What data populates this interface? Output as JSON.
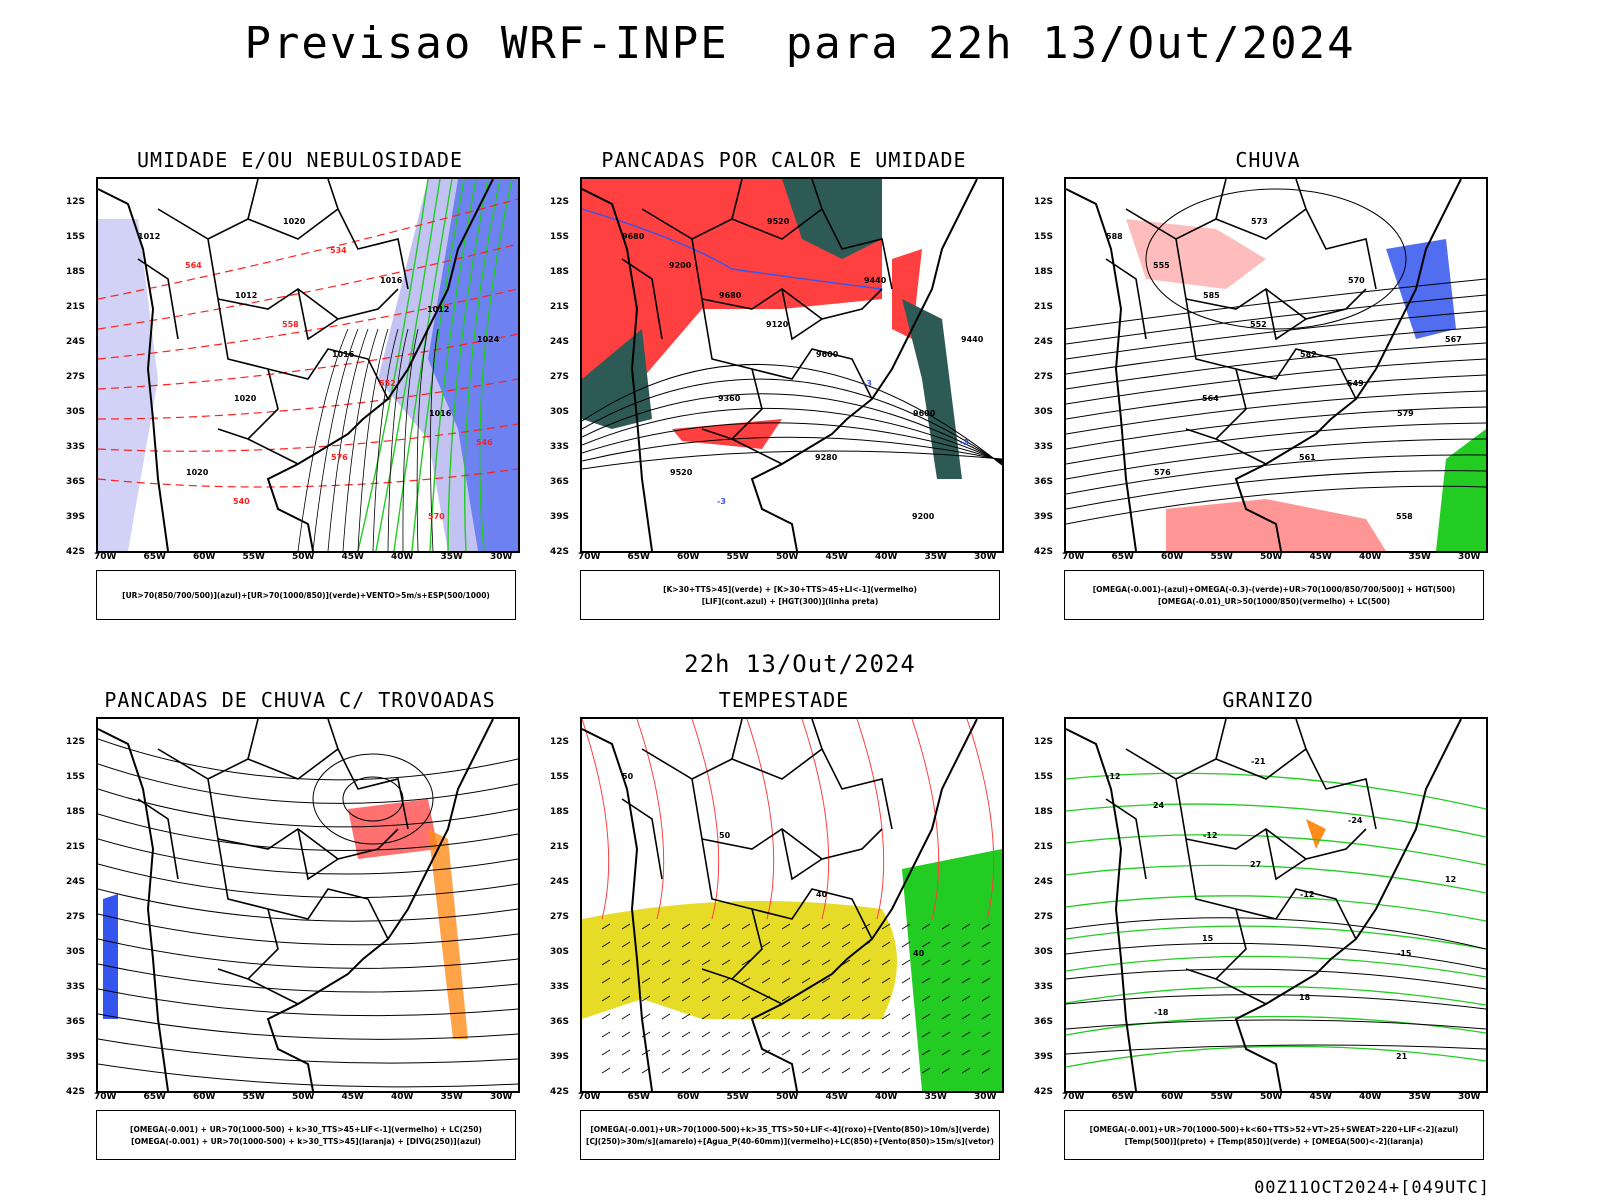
{
  "header": {
    "title": "Previsao WRF-INPE  para 22h 13/Out/2024",
    "subtitle": "22h 13/Out/2024",
    "footer": "00Z11OCT2024+[049UTC]"
  },
  "axes": {
    "lat_labels": [
      "12S",
      "15S",
      "18S",
      "21S",
      "24S",
      "27S",
      "30S",
      "33S",
      "36S",
      "39S",
      "42S"
    ],
    "lon_labels": [
      "70W",
      "65W",
      "60W",
      "55W",
      "50W",
      "45W",
      "40W",
      "35W",
      "30W"
    ]
  },
  "colors": {
    "red": "#ff4040",
    "blue": "#3355ee",
    "green": "#22cc22",
    "darkteal": "#2e5a55",
    "yellow": "#e6dc28",
    "orange": "#ff8c1a",
    "lavender": "#b4b4f0"
  },
  "panels": [
    {
      "title": "UMIDADE E/OU NEBULOSIDADE",
      "legend": [
        "[UR>70(850/700/500)](azul)+[UR>70(1000/850)](verde)+VENTO>5m/s+ESP(500/1000)"
      ],
      "contour_labels": [
        "1012",
        "1012",
        "1016",
        "1016",
        "1020",
        "1020",
        "1016",
        "1024",
        "1020",
        "576",
        "570",
        "564",
        "558",
        "552",
        "546",
        "540",
        "534",
        "1012"
      ]
    },
    {
      "title": "PANCADAS POR CALOR E UMIDADE",
      "legend": [
        "[K>30+TTS>45](verde) + [K>30+TTS>45+LI<-1](vermelho)",
        "[LIF](cont.azul) + [HGT(300)](linha preta)"
      ],
      "contour_labels": [
        "9680",
        "9680",
        "9600",
        "9600",
        "9520",
        "9520",
        "9440",
        "9440",
        "9360",
        "9280",
        "9200",
        "9200",
        "9120",
        "-3",
        "-3",
        "-3"
      ]
    },
    {
      "title": "CHUVA",
      "legend": [
        "[OMEGA(-0.001)-(azul)+OMEGA(-0.3)-(verde)+UR>70(1000/850/700/500)] + HGT(500)",
        "[OMEGA(-0.01)_UR>50(1000/850)(vermelho) + LC(500)"
      ],
      "contour_labels": [
        "588",
        "585",
        "582",
        "579",
        "576",
        "573",
        "570",
        "567",
        "564",
        "561",
        "558",
        "555",
        "552",
        "549"
      ]
    },
    {
      "title": "PANCADAS DE CHUVA C/ TROVOADAS",
      "legend": [
        "[OMEGA(-0.001) + UR>70(1000-500) + k>30_TTS>45+LIF<-1](vermelho) + LC(250)",
        "[OMEGA(-0.001) + UR>70(1000-500) + k>30_TTS>45](laranja) + [DIVG(250)](azul)"
      ],
      "contour_labels": []
    },
    {
      "title": "TEMPESTADE",
      "legend": [
        "[OMEGA(-0.001)+UR>70(1000-500)+k>35_TTS>50+LIF<-4](roxo)+[Vento(850)>10m/s](verde)",
        "[CJ(250)>30m/s](amarelo)+[Agua_P(40-60mm)](vermelho)+LC(850)+[Vento(850)>15m/s](vetor)"
      ],
      "contour_labels": [
        "50",
        "50",
        "40",
        "40"
      ]
    },
    {
      "title": "GRANIZO",
      "legend": [
        "[OMEGA(-0.001)+UR>70(1000-500)+k<60+TTS>52+VT>25+SWEAT>220+LIF<-2](azul)",
        "[Temp(500)](preto) + [Temp(850)](verde) + [OMEGA(500)<-2](laranja)"
      ],
      "contour_labels": [
        "-12",
        "-12",
        "-12",
        "-15",
        "-18",
        "-21",
        "-24",
        "12",
        "15",
        "18",
        "21",
        "24",
        "27"
      ]
    }
  ]
}
